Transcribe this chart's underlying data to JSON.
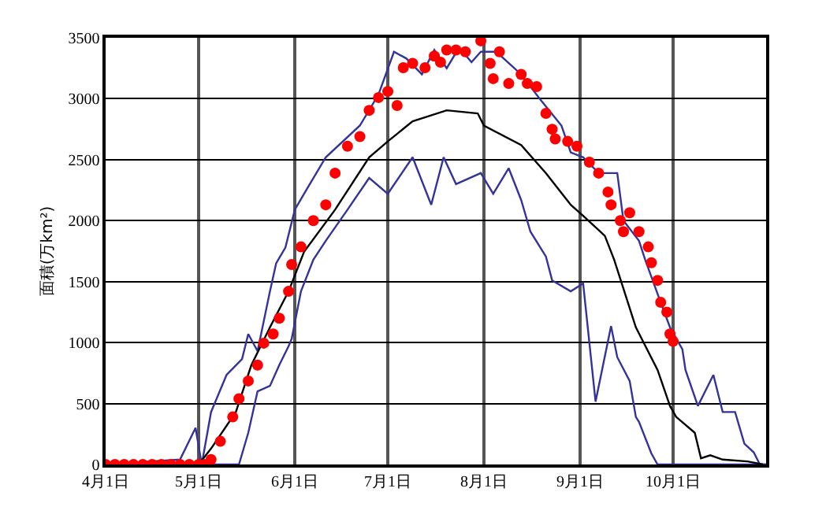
{
  "chart_data": {
    "type": "line",
    "ylabel": "面積(万km²)",
    "xlim": [
      "--04-01",
      "--10-31"
    ],
    "xticks": [
      {
        "value": "--04-01",
        "label": "4月1日"
      },
      {
        "value": "--05-01",
        "label": "5月1日"
      },
      {
        "value": "--06-01",
        "label": "6月1日"
      },
      {
        "value": "--07-01",
        "label": "7月1日"
      },
      {
        "value": "--08-01",
        "label": "8月1日"
      },
      {
        "value": "--09-01",
        "label": "9月1日"
      },
      {
        "value": "--10-01",
        "label": "10月1日"
      }
    ],
    "ylim": [
      0,
      3500
    ],
    "yticks": [
      0,
      500,
      1000,
      1500,
      2000,
      2500,
      3000,
      3500
    ],
    "grid": true,
    "series": [
      {
        "color": "#333399",
        "marker": "none",
        "x": [
          "--04-01",
          "--04-25",
          "--04-30",
          "--05-02",
          "--05-05",
          "--05-10",
          "--05-15",
          "--05-17",
          "--05-20",
          "--05-24",
          "--05-26",
          "--05-29",
          "--06-01",
          "--06-04",
          "--06-11",
          "--06-22",
          "--06-28",
          "--07-03",
          "--07-07",
          "--07-12",
          "--07-16",
          "--07-20",
          "--07-24",
          "--07-28",
          "--07-31",
          "--08-05",
          "--08-13",
          "--08-19",
          "--08-26",
          "--08-29",
          "--09-02",
          "--09-07",
          "--09-13",
          "--09-15",
          "--09-20",
          "--09-22",
          "--09-27",
          "--09-30",
          "--10-04",
          "--10-05",
          "--10-09",
          "--10-14",
          "--10-17",
          "--10-21",
          "--10-24",
          "--10-27",
          "--10-29",
          "--10-31"
        ],
        "values": [
          0,
          40,
          300,
          0,
          430,
          735,
          865,
          1070,
          930,
          1420,
          1650,
          1780,
          2090,
          2220,
          2520,
          2780,
          3035,
          3385,
          3330,
          3200,
          3400,
          3250,
          3420,
          3300,
          3385,
          3385,
          3200,
          3000,
          2780,
          2560,
          2520,
          2390,
          2390,
          2000,
          1835,
          1680,
          1330,
          1125,
          945,
          775,
          480,
          735,
          430,
          430,
          170,
          100,
          0,
          0
        ]
      },
      {
        "color": "#333399",
        "marker": "none",
        "x": [
          "--04-01",
          "--05-14",
          "--05-17",
          "--05-20",
          "--05-24",
          "--05-27",
          "--05-30",
          "--05-31",
          "--06-03",
          "--06-07",
          "--06-11",
          "--06-18",
          "--06-25",
          "--07-01",
          "--07-09",
          "--07-15",
          "--07-19",
          "--07-23",
          "--07-31",
          "--08-04",
          "--08-09",
          "--08-13",
          "--08-16",
          "--08-21",
          "--08-23",
          "--08-29",
          "--09-02",
          "--09-06",
          "--09-11",
          "--09-13",
          "--09-17",
          "--09-19",
          "--09-20",
          "--09-24",
          "--09-26",
          "--10-31"
        ],
        "values": [
          0,
          0,
          260,
          600,
          645,
          815,
          970,
          1030,
          1420,
          1680,
          1835,
          2090,
          2350,
          2220,
          2520,
          2130,
          2520,
          2300,
          2390,
          2220,
          2430,
          2170,
          1910,
          1705,
          1510,
          1420,
          1485,
          515,
          1135,
          880,
          685,
          390,
          350,
          90,
          0,
          0
        ]
      },
      {
        "color": "#000000",
        "marker": "none",
        "x": [
          "--04-01",
          "--05-01",
          "--05-05",
          "--05-13",
          "--05-18",
          "--05-24",
          "--05-30",
          "--06-04",
          "--06-14",
          "--06-25",
          "--07-01",
          "--07-09",
          "--07-20",
          "--07-30",
          "--08-01",
          "--08-13",
          "--08-21",
          "--08-29",
          "--09-02",
          "--09-09",
          "--09-12",
          "--09-19",
          "--09-26",
          "--09-30",
          "--10-02",
          "--10-08",
          "--10-10",
          "--10-13",
          "--10-17",
          "--10-25",
          "--10-30"
        ],
        "values": [
          0,
          0,
          130,
          430,
          815,
          1125,
          1420,
          1745,
          2090,
          2520,
          2650,
          2815,
          2905,
          2880,
          2780,
          2620,
          2390,
          2130,
          2040,
          1875,
          1680,
          1125,
          775,
          480,
          390,
          260,
          50,
          75,
          40,
          25,
          0
        ]
      },
      {
        "type": "scatter",
        "color": "#ff0000",
        "marker": "circle",
        "x": [
          "--04-01",
          "--04-04",
          "--04-07",
          "--04-10",
          "--04-13",
          "--04-16",
          "--04-19",
          "--04-22",
          "--04-25",
          "--04-28",
          "--05-01",
          "--05-03",
          "--05-05",
          "--05-08",
          "--05-12",
          "--05-14",
          "--05-17",
          "--05-20",
          "--05-22",
          "--05-25",
          "--05-27",
          "--05-30",
          "--05-31",
          "--06-03",
          "--06-07",
          "--06-11",
          "--06-14",
          "--06-18",
          "--06-22",
          "--06-25",
          "--06-28",
          "--07-01",
          "--07-04",
          "--07-06",
          "--07-09",
          "--07-13",
          "--07-16",
          "--07-18",
          "--07-20",
          "--07-23",
          "--07-26",
          "--07-31",
          "--08-03",
          "--08-04",
          "--08-06",
          "--08-09",
          "--08-13",
          "--08-15",
          "--08-18",
          "--08-21",
          "--08-23",
          "--08-24",
          "--08-28",
          "--08-31",
          "--09-04",
          "--09-07",
          "--09-10",
          "--09-11",
          "--09-14",
          "--09-15",
          "--09-17",
          "--09-20",
          "--09-23",
          "--09-24",
          "--09-26",
          "--09-27",
          "--09-29",
          "--09-30",
          "--10-01"
        ],
        "values": [
          0,
          0,
          0,
          0,
          0,
          0,
          0,
          0,
          0,
          0,
          0,
          0,
          40,
          190,
          390,
          540,
          685,
          815,
          995,
          1070,
          1200,
          1420,
          1640,
          1785,
          2000,
          2130,
          2390,
          2610,
          2690,
          2905,
          3010,
          3060,
          2945,
          3255,
          3290,
          3255,
          3350,
          3300,
          3400,
          3400,
          3385,
          3475,
          3290,
          3165,
          3385,
          3125,
          3200,
          3125,
          3100,
          2880,
          2750,
          2670,
          2650,
          2610,
          2480,
          2390,
          2235,
          2130,
          2000,
          1910,
          2065,
          1910,
          1785,
          1655,
          1510,
          1330,
          1250,
          1070,
          1010
        ]
      }
    ]
  }
}
